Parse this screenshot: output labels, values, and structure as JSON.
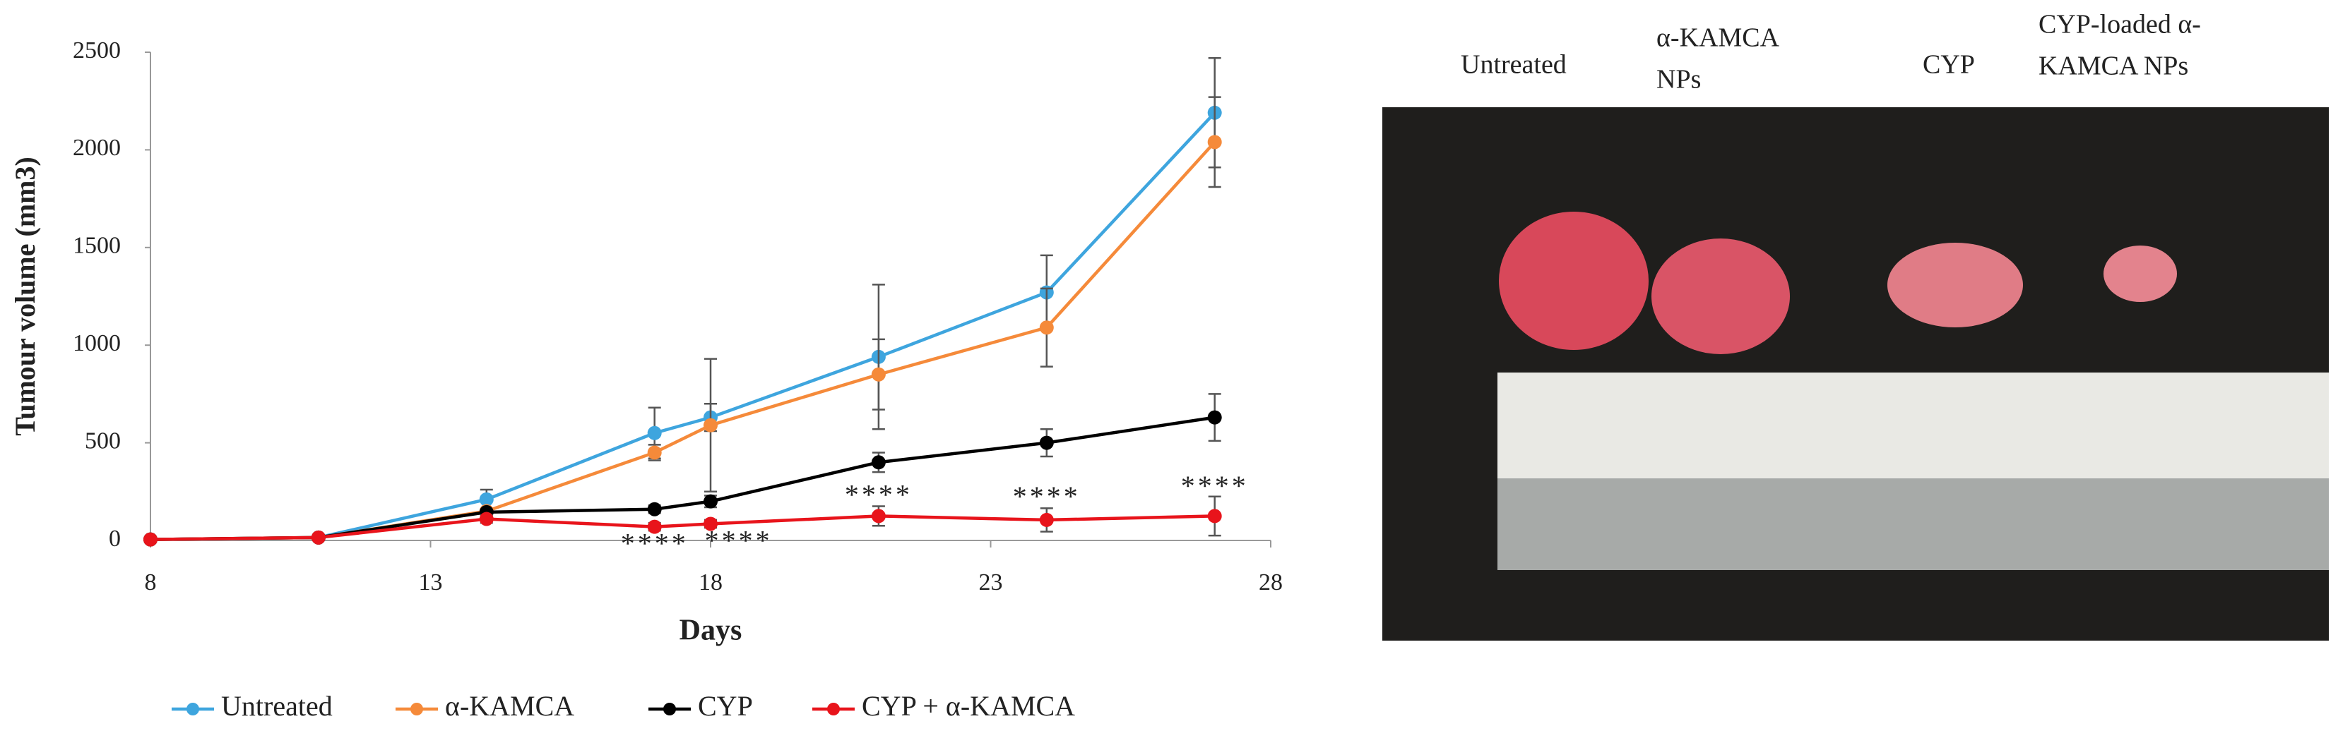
{
  "chart_data": {
    "type": "line",
    "xlabel": "Days",
    "ylabel": "Tumour volume (mm3)",
    "x": [
      8,
      11,
      14,
      17,
      18,
      21,
      24,
      27
    ],
    "xlim": [
      8,
      28
    ],
    "xticks": [
      8,
      13,
      18,
      23,
      28
    ],
    "ylim": [
      0,
      2500
    ],
    "yticks": [
      0,
      500,
      1000,
      1500,
      2000,
      2500
    ],
    "legend": "bottom",
    "series": [
      {
        "name": "Untreated",
        "color": "#3ea5de",
        "values": [
          5,
          15,
          210,
          550,
          630,
          940,
          1270,
          2190
        ],
        "errors": [
          0,
          0,
          50,
          130,
          70,
          370,
          190,
          280
        ]
      },
      {
        "name": "α-KAMCA",
        "color": "#f58a3a",
        "values": [
          5,
          15,
          150,
          450,
          590,
          850,
          1090,
          2040
        ],
        "errors": [
          0,
          0,
          10,
          40,
          340,
          180,
          200,
          230
        ]
      },
      {
        "name": "CYP",
        "color": "#000000",
        "values": [
          5,
          15,
          145,
          160,
          200,
          400,
          500,
          630
        ],
        "errors": [
          0,
          0,
          10,
          20,
          30,
          50,
          70,
          120
        ]
      },
      {
        "name": "CYP + α-KAMCA",
        "color": "#e8141b",
        "values": [
          5,
          15,
          110,
          70,
          85,
          125,
          105,
          125
        ],
        "errors": [
          0,
          0,
          20,
          20,
          20,
          50,
          60,
          100
        ]
      }
    ],
    "annotations": [
      {
        "text": "****",
        "x": 17,
        "y": -30
      },
      {
        "text": "****",
        "x": 18.5,
        "y": -15
      },
      {
        "text": "****",
        "x": 21,
        "y": 220
      },
      {
        "text": "****",
        "x": 24,
        "y": 210
      },
      {
        "text": "****",
        "x": 27,
        "y": 265
      }
    ]
  },
  "photo_labels": [
    [
      "Untreated"
    ],
    [
      "α-KAMCA",
      "NPs"
    ],
    [
      "CYP"
    ],
    [
      "CYP-loaded α-",
      "KAMCA NPs"
    ]
  ]
}
